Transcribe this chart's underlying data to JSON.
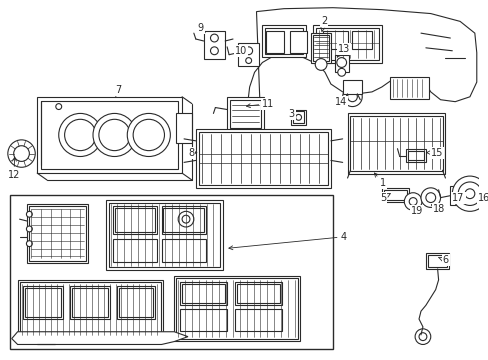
{
  "background_color": "#ffffff",
  "line_color": "#2a2a2a",
  "label_color": "#000000",
  "label_fontsize": 7.0,
  "fig_width": 4.89,
  "fig_height": 3.6,
  "dpi": 100
}
